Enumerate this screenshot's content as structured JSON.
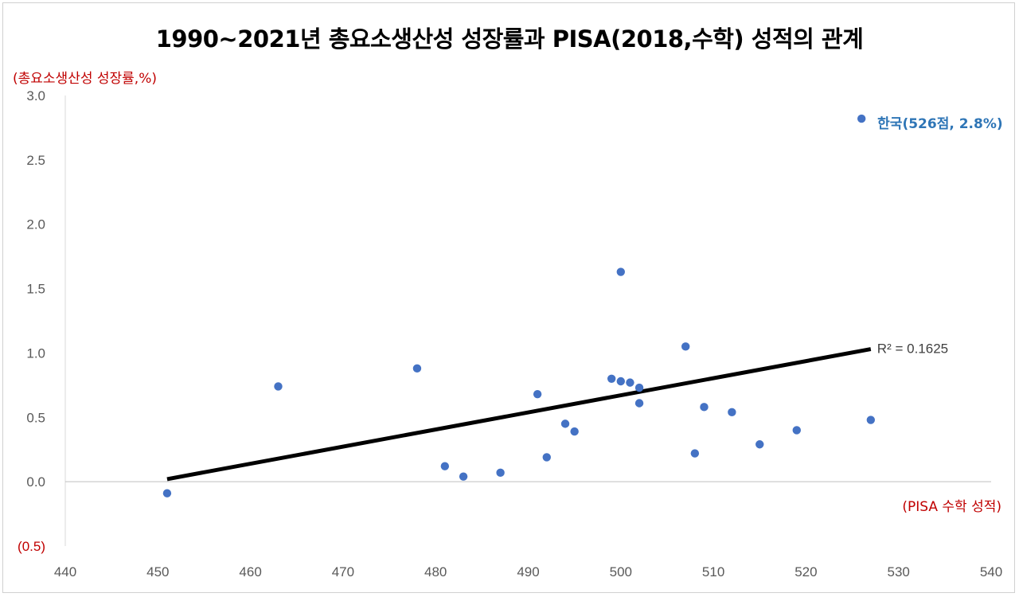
{
  "chart_data": {
    "type": "scatter",
    "title": "1990~2021년 총요소생산성 성장률과 PISA(2018,수학) 성적의 관계",
    "ylabel": "(총요소생산성 성장률,%)",
    "xlabel": "(PISA 수학 성적)",
    "xlim": [
      440,
      540
    ],
    "ylim": [
      -0.5,
      3.0
    ],
    "x_ticks": [
      "440",
      "450",
      "460",
      "470",
      "480",
      "490",
      "500",
      "510",
      "520",
      "530",
      "540"
    ],
    "y_ticks": [
      "(0.5)",
      "0.0",
      "0.5",
      "1.0",
      "1.5",
      "2.0",
      "2.5",
      "3.0"
    ],
    "grid": false,
    "point_color": "#4472c4",
    "points": [
      {
        "x": 451,
        "y": -0.09
      },
      {
        "x": 463,
        "y": 0.74
      },
      {
        "x": 478,
        "y": 0.88
      },
      {
        "x": 481,
        "y": 0.12
      },
      {
        "x": 483,
        "y": 0.04
      },
      {
        "x": 487,
        "y": 0.07
      },
      {
        "x": 491,
        "y": 0.68
      },
      {
        "x": 492,
        "y": 0.19
      },
      {
        "x": 494,
        "y": 0.45
      },
      {
        "x": 495,
        "y": 0.39
      },
      {
        "x": 499,
        "y": 0.8
      },
      {
        "x": 500,
        "y": 0.78
      },
      {
        "x": 500,
        "y": 1.63
      },
      {
        "x": 501,
        "y": 0.77
      },
      {
        "x": 502,
        "y": 0.73
      },
      {
        "x": 502,
        "y": 0.61
      },
      {
        "x": 507,
        "y": 1.05
      },
      {
        "x": 508,
        "y": 0.22
      },
      {
        "x": 509,
        "y": 0.58
      },
      {
        "x": 512,
        "y": 0.54
      },
      {
        "x": 515,
        "y": 0.29
      },
      {
        "x": 519,
        "y": 0.4
      },
      {
        "x": 526,
        "y": 2.82
      },
      {
        "x": 527,
        "y": 0.48
      }
    ],
    "trendline": {
      "x": [
        451,
        527
      ],
      "y": [
        0.02,
        1.03
      ],
      "color": "#000000",
      "r2_label": "R² = 0.1625"
    },
    "annotation": {
      "text": "한국(526점, 2.8%)",
      "x": 526,
      "y": 2.82,
      "color": "#2e75b6"
    }
  }
}
